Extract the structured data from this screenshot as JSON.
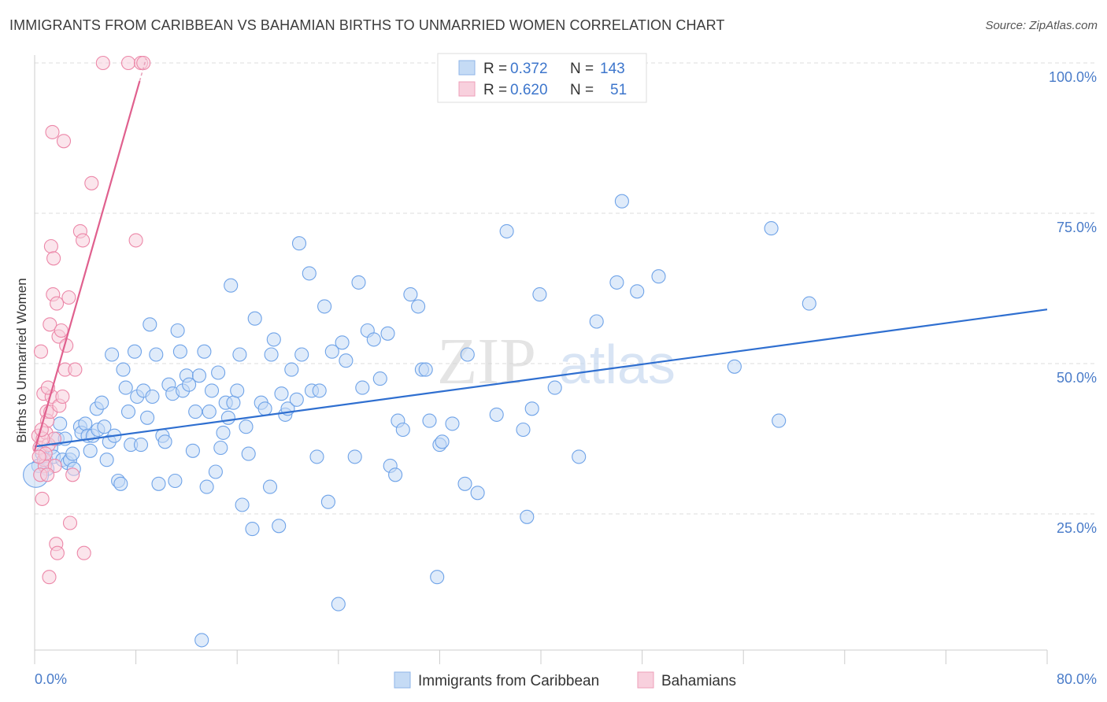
{
  "header": {
    "title": "IMMIGRANTS FROM CARIBBEAN VS BAHAMIAN BIRTHS TO UNMARRIED WOMEN CORRELATION CHART",
    "source": "Source: ZipAtlas.com"
  },
  "watermark": {
    "zip": "ZIP",
    "atlas": "atlas"
  },
  "legend_top": {
    "rows": [
      {
        "r_label": "R =",
        "r_value": "0.372",
        "n_label": "N =",
        "n_value": "143",
        "color": "#a9c8f0"
      },
      {
        "r_label": "R =",
        "r_value": "0.620",
        "n_label": "N =",
        "n_value": "51",
        "color": "#f5b8cc"
      }
    ]
  },
  "legend_bottom": {
    "items": [
      {
        "label": "Immigrants from Caribbean",
        "color": "#a9c8f0"
      },
      {
        "label": "Bahamians",
        "color": "#f5b8cc"
      }
    ]
  },
  "chart_data": {
    "type": "scatter",
    "title": "IMMIGRANTS FROM CARIBBEAN VS BAHAMIAN BIRTHS TO UNMARRIED WOMEN CORRELATION CHART",
    "xlabel": "",
    "ylabel": "Births to Unmarried Women",
    "xlim": [
      0,
      80
    ],
    "ylim": [
      0,
      105
    ],
    "x_tick_labels": [
      {
        "value": 0,
        "label": "0.0%"
      },
      {
        "value": 80,
        "label": "80.0%"
      }
    ],
    "y_tick_labels": [
      {
        "value": 25,
        "label": "25.0%"
      },
      {
        "value": 50,
        "label": "50.0%"
      },
      {
        "value": 75,
        "label": "75.0%"
      },
      {
        "value": 100,
        "label": "100.0%"
      }
    ],
    "grid": true,
    "legend_position": "top-center",
    "series": [
      {
        "name": "Immigrants from Caribbean",
        "color": "#6fa3e8",
        "fill": "#c5dbf5",
        "line_color": "#2f6fd0",
        "trend": {
          "x": [
            0,
            80
          ],
          "y": [
            36.2,
            59.0
          ]
        },
        "points": [
          [
            0.3,
            33
          ],
          [
            0.6,
            35
          ],
          [
            0.9,
            34
          ],
          [
            1.0,
            32.5
          ],
          [
            1.3,
            36
          ],
          [
            1.5,
            34.5
          ],
          [
            1.8,
            37.5
          ],
          [
            2.0,
            40
          ],
          [
            2.2,
            34
          ],
          [
            2.4,
            37.5
          ],
          [
            2.6,
            33.5
          ],
          [
            2.8,
            34
          ],
          [
            3.0,
            35
          ],
          [
            3.1,
            32.5
          ],
          [
            3.6,
            39.5
          ],
          [
            3.7,
            38.5
          ],
          [
            4.0,
            40
          ],
          [
            4.2,
            38
          ],
          [
            4.4,
            35.5
          ],
          [
            4.6,
            38
          ],
          [
            4.9,
            42.5
          ],
          [
            5.0,
            39
          ],
          [
            5.3,
            43.5
          ],
          [
            5.5,
            39.5
          ],
          [
            5.7,
            34
          ],
          [
            5.9,
            37
          ],
          [
            6.1,
            51.5
          ],
          [
            6.3,
            38
          ],
          [
            6.6,
            30.5
          ],
          [
            6.8,
            30
          ],
          [
            7.0,
            49
          ],
          [
            7.2,
            46
          ],
          [
            7.4,
            42
          ],
          [
            7.6,
            36.5
          ],
          [
            7.9,
            52
          ],
          [
            8.1,
            44.5
          ],
          [
            8.4,
            36.5
          ],
          [
            8.6,
            45.5
          ],
          [
            8.9,
            41
          ],
          [
            9.1,
            56.5
          ],
          [
            9.3,
            44.5
          ],
          [
            9.6,
            51.5
          ],
          [
            9.8,
            30
          ],
          [
            10.1,
            38
          ],
          [
            10.3,
            37
          ],
          [
            10.6,
            46.5
          ],
          [
            10.9,
            45
          ],
          [
            11.1,
            30.5
          ],
          [
            11.3,
            55.5
          ],
          [
            11.5,
            52
          ],
          [
            11.7,
            45.5
          ],
          [
            12.0,
            48
          ],
          [
            12.2,
            46.5
          ],
          [
            12.5,
            35.5
          ],
          [
            12.7,
            42
          ],
          [
            13.0,
            48
          ],
          [
            13.2,
            4
          ],
          [
            13.4,
            52
          ],
          [
            13.6,
            29.5
          ],
          [
            13.8,
            42
          ],
          [
            14.0,
            45.5
          ],
          [
            14.3,
            32
          ],
          [
            14.5,
            48.5
          ],
          [
            14.7,
            36
          ],
          [
            14.9,
            38.5
          ],
          [
            15.1,
            43.5
          ],
          [
            15.3,
            41
          ],
          [
            15.5,
            63
          ],
          [
            15.7,
            43.5
          ],
          [
            16.0,
            45.5
          ],
          [
            16.2,
            51.5
          ],
          [
            16.4,
            26.5
          ],
          [
            16.7,
            39.5
          ],
          [
            16.9,
            35
          ],
          [
            17.2,
            22.5
          ],
          [
            17.4,
            57.5
          ],
          [
            17.9,
            43.5
          ],
          [
            18.2,
            42.5
          ],
          [
            18.6,
            29.5
          ],
          [
            18.7,
            51.5
          ],
          [
            18.9,
            54
          ],
          [
            19.3,
            23
          ],
          [
            19.5,
            45
          ],
          [
            19.8,
            41.5
          ],
          [
            20.0,
            42.5
          ],
          [
            20.3,
            49
          ],
          [
            20.7,
            44
          ],
          [
            20.9,
            70
          ],
          [
            21.1,
            51.5
          ],
          [
            21.7,
            65
          ],
          [
            21.9,
            45.5
          ],
          [
            22.3,
            34.5
          ],
          [
            22.5,
            45.5
          ],
          [
            22.9,
            59.5
          ],
          [
            23.2,
            27
          ],
          [
            23.5,
            52
          ],
          [
            24.0,
            10
          ],
          [
            24.3,
            53.5
          ],
          [
            24.6,
            50.5
          ],
          [
            25.3,
            34.5
          ],
          [
            25.6,
            63.5
          ],
          [
            25.9,
            46
          ],
          [
            26.3,
            55.5
          ],
          [
            26.8,
            54
          ],
          [
            27.3,
            47.5
          ],
          [
            27.9,
            55
          ],
          [
            28.1,
            33
          ],
          [
            28.5,
            31.5
          ],
          [
            28.7,
            40.5
          ],
          [
            29.1,
            39
          ],
          [
            29.7,
            61.5
          ],
          [
            30.3,
            59.5
          ],
          [
            30.6,
            49
          ],
          [
            30.9,
            49
          ],
          [
            31.2,
            40.5
          ],
          [
            31.8,
            14.5
          ],
          [
            32.0,
            36.5
          ],
          [
            32.2,
            37
          ],
          [
            33.0,
            40
          ],
          [
            34.0,
            30
          ],
          [
            34.2,
            51.5
          ],
          [
            35.0,
            28.5
          ],
          [
            36.5,
            41.5
          ],
          [
            37.3,
            72
          ],
          [
            38.6,
            39
          ],
          [
            38.9,
            24.5
          ],
          [
            39.3,
            42.5
          ],
          [
            39.9,
            61.5
          ],
          [
            41.1,
            46
          ],
          [
            43.0,
            34.5
          ],
          [
            44.4,
            57
          ],
          [
            46.0,
            63.5
          ],
          [
            46.4,
            77
          ],
          [
            47.6,
            62
          ],
          [
            49.3,
            64.5
          ],
          [
            55.3,
            49.5
          ],
          [
            58.2,
            72.5
          ],
          [
            58.8,
            40.5
          ],
          [
            61.2,
            60
          ]
        ]
      },
      {
        "name": "Bahamians",
        "color": "#ec87a8",
        "fill": "#f8d0dd",
        "line_color": "#e0608e",
        "trend": {
          "x": [
            0,
            8.3
          ],
          "y": [
            35.5,
            97.0
          ]
        },
        "points": [
          [
            0.3,
            38
          ],
          [
            0.4,
            36
          ],
          [
            0.5,
            52
          ],
          [
            0.6,
            27.5
          ],
          [
            0.7,
            45
          ],
          [
            0.75,
            34
          ],
          [
            0.8,
            33
          ],
          [
            0.9,
            38.5
          ],
          [
            0.95,
            42
          ],
          [
            1.0,
            40.5
          ],
          [
            1.1,
            36.5
          ],
          [
            1.2,
            56.5
          ],
          [
            1.25,
            42
          ],
          [
            1.3,
            69.5
          ],
          [
            1.35,
            44.5
          ],
          [
            1.4,
            88.5
          ],
          [
            1.45,
            61.5
          ],
          [
            1.5,
            67.5
          ],
          [
            1.55,
            37.5
          ],
          [
            1.6,
            33
          ],
          [
            1.7,
            20
          ],
          [
            1.8,
            18.5
          ],
          [
            1.9,
            54.5
          ],
          [
            2.1,
            55.5
          ],
          [
            2.3,
            87
          ],
          [
            2.4,
            49
          ],
          [
            2.5,
            53
          ],
          [
            2.7,
            61
          ],
          [
            2.8,
            23.5
          ],
          [
            3.0,
            31.5
          ],
          [
            3.2,
            49
          ],
          [
            3.6,
            72
          ],
          [
            3.8,
            70.5
          ],
          [
            3.9,
            18.5
          ],
          [
            4.5,
            80
          ],
          [
            5.4,
            100
          ],
          [
            7.4,
            100
          ],
          [
            8.4,
            100
          ],
          [
            8.6,
            100
          ],
          [
            8.0,
            70.5
          ],
          [
            1.15,
            14.5
          ],
          [
            0.85,
            35
          ],
          [
            0.65,
            37.5
          ],
          [
            0.55,
            39
          ],
          [
            1.05,
            46
          ],
          [
            1.75,
            60
          ],
          [
            0.45,
            31.5
          ],
          [
            0.35,
            34.5
          ],
          [
            1.95,
            43
          ],
          [
            2.2,
            44.5
          ],
          [
            1.0,
            31.5
          ]
        ]
      }
    ]
  }
}
